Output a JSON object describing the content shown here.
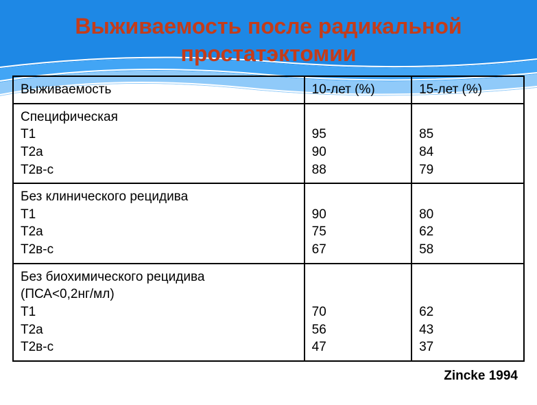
{
  "title_line1": "Выживаемость после радикальной",
  "title_line2": "простатэктомии",
  "title_color": "#c43c1a",
  "header_band_colors": [
    "#1e88e5",
    "#42a5f5",
    "#90caf9",
    "#ffffff"
  ],
  "table": {
    "columns": [
      "Выживаемость",
      "10-лет (%)",
      "15-лет (%)"
    ],
    "rows": [
      {
        "label_lines": [
          "Специфическая",
          "Т1",
          "Т2а",
          "Т2в-с"
        ],
        "col1_lines": [
          "",
          "95",
          "90",
          "88"
        ],
        "col2_lines": [
          "",
          "85",
          "84",
          "79"
        ]
      },
      {
        "label_lines": [
          "Без клинического рецидива",
          "Т1",
          "Т2а",
          "Т2в-с"
        ],
        "col1_lines": [
          "",
          "90",
          "75",
          "67"
        ],
        "col2_lines": [
          "",
          "80",
          "62",
          "58"
        ]
      },
      {
        "label_lines": [
          "Без биохимического рецидива",
          "(ПСА<0,2нг/мл)",
          "Т1",
          "Т2а",
          "Т2в-с"
        ],
        "col1_lines": [
          "",
          "",
          "70",
          "56",
          "47"
        ],
        "col2_lines": [
          "",
          "",
          "62",
          "43",
          "37"
        ]
      }
    ]
  },
  "citation": "Zincke 1994"
}
